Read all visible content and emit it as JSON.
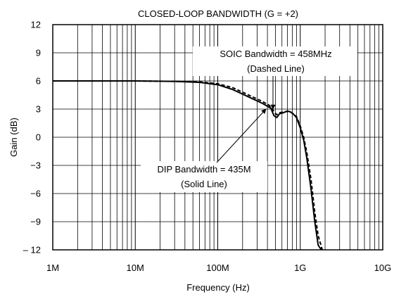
{
  "chart_data": {
    "type": "line",
    "title": "CLOSED-LOOP BANDWIDTH (G = +2)",
    "xlabel": "Frequency (Hz)",
    "ylabel": "Gain (dB)",
    "x_scale": "log",
    "xlim": [
      1000000,
      10000000000
    ],
    "ylim": [
      -12,
      12
    ],
    "grid": true,
    "x_ticks": [
      {
        "value": 1000000,
        "label": "1M"
      },
      {
        "value": 10000000,
        "label": "10M"
      },
      {
        "value": 100000000,
        "label": "100M"
      },
      {
        "value": 1000000000,
        "label": "1G"
      },
      {
        "value": 10000000000,
        "label": "10G"
      }
    ],
    "y_ticks": [
      {
        "value": 12,
        "label": "12"
      },
      {
        "value": 9,
        "label": "9"
      },
      {
        "value": 6,
        "label": "6"
      },
      {
        "value": 3,
        "label": "3"
      },
      {
        "value": 0,
        "label": "0"
      },
      {
        "value": -3,
        "label": "−3"
      },
      {
        "value": -6,
        "label": "−6"
      },
      {
        "value": -9,
        "label": "−9"
      },
      {
        "value": -12,
        "label": "– 12"
      }
    ],
    "series": [
      {
        "style": "dashed",
        "color": "#000000",
        "x": [
          1000000,
          10000000,
          30000000,
          60000000,
          100000000,
          150000000,
          200000000,
          280000000,
          350000000,
          420000000,
          460000000,
          490000000,
          520000000,
          560000000,
          620000000,
          700000000,
          760000000,
          820000000,
          900000000,
          1000000000,
          1100000000,
          1200000000,
          1350000000,
          1500000000,
          1650000000,
          1850000000
        ],
        "y": [
          6,
          6,
          5.95,
          5.9,
          5.7,
          5.3,
          4.8,
          4.2,
          3.8,
          3.4,
          3.0,
          2.6,
          2.4,
          2.6,
          2.7,
          2.75,
          2.7,
          2.5,
          2.2,
          1.2,
          0,
          -1.6,
          -4.5,
          -8,
          -10.5,
          -12
        ]
      },
      {
        "style": "solid",
        "color": "#000000",
        "x": [
          1000000,
          10000000,
          30000000,
          60000000,
          100000000,
          150000000,
          200000000,
          280000000,
          350000000,
          400000000,
          440000000,
          480000000,
          520000000,
          560000000,
          620000000,
          700000000,
          760000000,
          820000000,
          900000000,
          1000000000,
          1100000000,
          1200000000,
          1350000000,
          1500000000,
          1650000000,
          1800000000
        ],
        "y": [
          6,
          6,
          5.95,
          5.85,
          5.6,
          5.1,
          4.6,
          4.0,
          3.6,
          3.3,
          3.1,
          2.3,
          2.1,
          2.5,
          2.6,
          2.8,
          2.7,
          2.5,
          2.1,
          1.0,
          -0.3,
          -2.2,
          -5.5,
          -9,
          -11.5,
          -12
        ]
      }
    ],
    "annotations": [
      {
        "id": "soic",
        "lines": [
          "SOIC Bandwidth = 458MHz",
          "(Dashed Line)"
        ],
        "arrow_to": {
          "x": 458000000,
          "y": 3.0
        }
      },
      {
        "id": "dip",
        "lines": [
          "DIP Bandwidth = 435M",
          "(Solid Line)"
        ],
        "arrow_to": {
          "x": 435000000,
          "y": 3.0
        }
      }
    ]
  }
}
